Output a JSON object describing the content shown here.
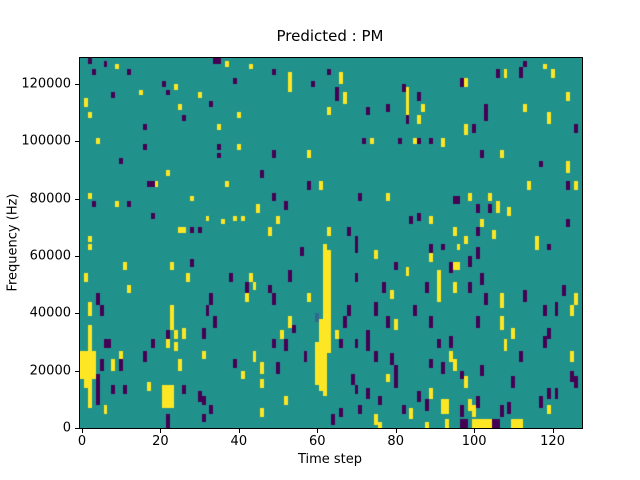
{
  "figure": {
    "title": "Predicted : PM",
    "background_color": "#ffffff"
  },
  "chart_data": {
    "type": "heatmap",
    "title": "Predicted : PM",
    "xlabel": "Time step",
    "ylabel": "Frequency (Hz)",
    "xlim": [
      -0.5,
      127.5
    ],
    "ylim": [
      0,
      129000
    ],
    "x_ticks": [
      0,
      20,
      40,
      60,
      80,
      100,
      120
    ],
    "y_ticks": [
      0,
      20000,
      40000,
      60000,
      80000,
      100000,
      120000
    ],
    "grid": {
      "cols": 128,
      "rows": 129,
      "row_unit_hz": 1000,
      "gridlines": false
    },
    "legend": null,
    "colors": {
      "background_value": "#21918c",
      "high_value": "#fde725",
      "low_value": "#440154",
      "mid_low_value": "#31688e",
      "axes_frame": "#000000"
    },
    "cell_format": "[time_step_col, freq_bottom_kHz, freq_top_kHz, optional_width_cols]",
    "high_cells": [
      [
        9,
        125,
        127
      ],
      [
        37,
        126,
        128
      ],
      [
        24,
        118,
        120
      ],
      [
        15,
        116,
        118
      ],
      [
        30,
        115,
        117
      ],
      [
        25,
        111,
        113
      ],
      [
        1,
        112,
        115
      ],
      [
        2,
        108,
        110
      ],
      [
        40,
        108,
        110
      ],
      [
        35,
        104,
        106
      ],
      [
        4,
        99,
        101
      ],
      [
        40,
        97,
        99
      ],
      [
        22,
        88,
        90
      ],
      [
        19,
        84,
        86
      ],
      [
        37,
        84,
        86
      ],
      [
        2,
        80,
        82
      ],
      [
        28,
        79,
        81
      ],
      [
        9,
        77,
        79
      ],
      [
        32,
        72,
        74
      ],
      [
        36,
        71,
        73
      ],
      [
        39,
        72,
        74
      ],
      [
        41,
        72,
        74
      ],
      [
        25,
        68,
        70,
        2
      ],
      [
        2,
        65,
        67
      ],
      [
        43,
        125,
        127
      ],
      [
        53,
        117,
        124
      ],
      [
        66,
        120,
        124
      ],
      [
        67,
        113,
        117
      ],
      [
        63,
        109,
        112
      ],
      [
        83,
        109,
        119
      ],
      [
        74,
        99,
        101
      ],
      [
        85,
        99,
        101
      ],
      [
        58,
        94,
        97
      ],
      [
        61,
        83,
        86
      ],
      [
        45,
        75,
        78
      ],
      [
        50,
        71,
        74
      ],
      [
        78,
        79,
        82
      ],
      [
        48,
        67,
        70
      ],
      [
        63,
        67,
        70
      ],
      [
        118,
        125,
        127
      ],
      [
        108,
        122,
        125
      ],
      [
        120,
        122,
        125
      ],
      [
        98,
        119,
        122
      ],
      [
        87,
        110,
        113
      ],
      [
        124,
        114,
        117
      ],
      [
        113,
        110,
        113
      ],
      [
        86,
        106,
        109
      ],
      [
        119,
        106,
        110
      ],
      [
        98,
        102,
        106
      ],
      [
        92,
        98,
        101
      ],
      [
        107,
        94,
        97
      ],
      [
        124,
        89,
        93
      ],
      [
        114,
        83,
        86
      ],
      [
        126,
        83,
        86
      ],
      [
        99,
        79,
        82
      ],
      [
        104,
        79,
        82
      ],
      [
        106,
        75,
        79
      ],
      [
        109,
        74,
        77
      ],
      [
        89,
        71,
        74
      ],
      [
        102,
        70,
        73
      ],
      [
        95,
        67,
        70
      ],
      [
        105,
        66,
        69
      ],
      [
        98,
        64,
        67
      ],
      [
        116,
        64,
        67
      ],
      [
        2,
        62,
        64
      ],
      [
        11,
        55,
        58
      ],
      [
        23,
        55,
        58
      ],
      [
        1,
        51,
        54
      ],
      [
        27,
        51,
        54
      ],
      [
        12,
        47,
        50
      ],
      [
        42,
        44,
        47
      ],
      [
        2,
        39,
        44
      ],
      [
        23,
        34,
        43
      ],
      [
        2,
        26,
        36
      ],
      [
        24,
        31,
        34
      ],
      [
        26,
        31,
        35
      ],
      [
        22,
        28,
        31
      ],
      [
        24,
        27,
        30
      ],
      [
        10,
        23,
        27
      ],
      [
        31,
        24,
        27
      ],
      [
        0,
        17,
        27,
        4
      ],
      [
        1,
        14,
        17,
        2
      ],
      [
        8,
        20,
        24
      ],
      [
        25,
        20,
        24
      ],
      [
        41,
        17,
        20
      ],
      [
        2,
        7,
        14
      ],
      [
        17,
        13,
        16
      ],
      [
        21,
        7,
        15,
        3
      ],
      [
        6,
        5,
        8
      ],
      [
        62,
        11,
        64
      ],
      [
        63,
        26,
        62
      ],
      [
        61,
        13,
        38
      ],
      [
        60,
        15,
        30
      ],
      [
        75,
        59,
        62
      ],
      [
        83,
        53,
        56
      ],
      [
        43,
        51,
        54
      ],
      [
        44,
        48,
        51
      ],
      [
        79,
        45,
        48
      ],
      [
        58,
        44,
        47
      ],
      [
        53,
        35,
        39
      ],
      [
        80,
        34,
        38
      ],
      [
        51,
        31,
        34
      ],
      [
        65,
        31,
        34
      ],
      [
        44,
        23,
        27
      ],
      [
        46,
        19,
        23
      ],
      [
        78,
        16,
        19
      ],
      [
        46,
        14,
        17
      ],
      [
        52,
        8,
        11
      ],
      [
        46,
        4,
        7
      ],
      [
        75,
        1,
        5
      ],
      [
        84,
        3,
        7
      ],
      [
        96,
        62,
        64
      ],
      [
        116,
        62,
        64
      ],
      [
        89,
        58,
        62
      ],
      [
        95,
        55,
        58,
        2
      ],
      [
        91,
        44,
        55
      ],
      [
        95,
        47,
        51
      ],
      [
        107,
        42,
        47
      ],
      [
        126,
        43,
        47
      ],
      [
        125,
        39,
        43
      ],
      [
        107,
        34,
        39
      ],
      [
        110,
        31,
        35
      ],
      [
        108,
        27,
        31
      ],
      [
        125,
        23,
        27
      ],
      [
        94,
        23,
        27
      ],
      [
        95,
        20,
        24
      ],
      [
        98,
        14,
        18
      ],
      [
        89,
        10,
        14
      ],
      [
        92,
        5,
        10,
        2
      ],
      [
        99,
        6,
        10
      ],
      [
        100,
        4,
        8
      ],
      [
        119,
        5,
        8
      ],
      [
        76,
        0,
        2
      ],
      [
        88,
        0,
        2
      ],
      [
        93,
        0,
        3
      ],
      [
        100,
        0,
        3,
        5
      ],
      [
        110,
        0,
        3,
        3
      ]
    ],
    "low_cells": [
      [
        2,
        127,
        129
      ],
      [
        6,
        126,
        128
      ],
      [
        3,
        123,
        125
      ],
      [
        12,
        123,
        125
      ],
      [
        34,
        127,
        129,
        2
      ],
      [
        39,
        120,
        122
      ],
      [
        21,
        119,
        121
      ],
      [
        8,
        115,
        117
      ],
      [
        22,
        116,
        118
      ],
      [
        33,
        112,
        114
      ],
      [
        26,
        107,
        109
      ],
      [
        16,
        104,
        106
      ],
      [
        16,
        97,
        99
      ],
      [
        35,
        97,
        99
      ],
      [
        35,
        94,
        96
      ],
      [
        10,
        92,
        94
      ],
      [
        17,
        84,
        86,
        2
      ],
      [
        3,
        77,
        79
      ],
      [
        12,
        77,
        79
      ],
      [
        18,
        73,
        75
      ],
      [
        28,
        68,
        70
      ],
      [
        30,
        68,
        70
      ],
      [
        49,
        123,
        125
      ],
      [
        59,
        119,
        121
      ],
      [
        63,
        123,
        125
      ],
      [
        65,
        114,
        119
      ],
      [
        73,
        109,
        112
      ],
      [
        78,
        110,
        113
      ],
      [
        82,
        117,
        120
      ],
      [
        83,
        106,
        109
      ],
      [
        72,
        99,
        101
      ],
      [
        81,
        99,
        101
      ],
      [
        49,
        94,
        97
      ],
      [
        46,
        87,
        90
      ],
      [
        58,
        83,
        86
      ],
      [
        49,
        79,
        82
      ],
      [
        52,
        76,
        79
      ],
      [
        71,
        79,
        82
      ],
      [
        84,
        71,
        74
      ],
      [
        68,
        67,
        70
      ],
      [
        70,
        64,
        67
      ],
      [
        113,
        126,
        128
      ],
      [
        106,
        122,
        125
      ],
      [
        112,
        122,
        126
      ],
      [
        97,
        119,
        122
      ],
      [
        86,
        114,
        117
      ],
      [
        103,
        110,
        113
      ],
      [
        103,
        107,
        110
      ],
      [
        100,
        103,
        106
      ],
      [
        126,
        103,
        106
      ],
      [
        86,
        99,
        101
      ],
      [
        89,
        99,
        101
      ],
      [
        102,
        94,
        97
      ],
      [
        117,
        91,
        93
      ],
      [
        124,
        83,
        86
      ],
      [
        95,
        78,
        81,
        2
      ],
      [
        101,
        75,
        78
      ],
      [
        104,
        75,
        78
      ],
      [
        86,
        72,
        75
      ],
      [
        124,
        70,
        73
      ],
      [
        101,
        67,
        70
      ],
      [
        28,
        56,
        59
      ],
      [
        38,
        51,
        54
      ],
      [
        42,
        47,
        51
      ],
      [
        4,
        43,
        47
      ],
      [
        33,
        43,
        47
      ],
      [
        32,
        39,
        43
      ],
      [
        5,
        39,
        43
      ],
      [
        34,
        35,
        39
      ],
      [
        31,
        31,
        35
      ],
      [
        22,
        31,
        34
      ],
      [
        6,
        28,
        31,
        2
      ],
      [
        16,
        23,
        27
      ],
      [
        18,
        28,
        31
      ],
      [
        5,
        20,
        24
      ],
      [
        10,
        20,
        24
      ],
      [
        39,
        21,
        24
      ],
      [
        4,
        8,
        19
      ],
      [
        8,
        12,
        15
      ],
      [
        11,
        12,
        15
      ],
      [
        26,
        12,
        15
      ],
      [
        30,
        9,
        13
      ],
      [
        31,
        8,
        11
      ],
      [
        33,
        5,
        8
      ],
      [
        22,
        0,
        5
      ],
      [
        31,
        2,
        5
      ],
      [
        56,
        60,
        63
      ],
      [
        70,
        61,
        64
      ],
      [
        80,
        55,
        58
      ],
      [
        53,
        51,
        55
      ],
      [
        70,
        51,
        54
      ],
      [
        48,
        47,
        50
      ],
      [
        77,
        47,
        51
      ],
      [
        49,
        43,
        47
      ],
      [
        68,
        39,
        43
      ],
      [
        67,
        35,
        39
      ],
      [
        75,
        39,
        44
      ],
      [
        85,
        39,
        43
      ],
      [
        54,
        33,
        36
      ],
      [
        78,
        35,
        39
      ],
      [
        73,
        31,
        34
      ],
      [
        49,
        28,
        31
      ],
      [
        52,
        27,
        31
      ],
      [
        66,
        28,
        31
      ],
      [
        70,
        28,
        31
      ],
      [
        73,
        27,
        31
      ],
      [
        50,
        19,
        23
      ],
      [
        57,
        23,
        27
      ],
      [
        75,
        23,
        27
      ],
      [
        79,
        22,
        26
      ],
      [
        80,
        14,
        22
      ],
      [
        69,
        15,
        19
      ],
      [
        70,
        12,
        15
      ],
      [
        73,
        10,
        14
      ],
      [
        76,
        8,
        11
      ],
      [
        66,
        4,
        7
      ],
      [
        71,
        5,
        8
      ],
      [
        82,
        5,
        8
      ],
      [
        64,
        1,
        5
      ],
      [
        89,
        61,
        64
      ],
      [
        92,
        62,
        64
      ],
      [
        101,
        59,
        63
      ],
      [
        119,
        62,
        64
      ],
      [
        94,
        54,
        58
      ],
      [
        99,
        56,
        60
      ],
      [
        102,
        50,
        54
      ],
      [
        88,
        47,
        51
      ],
      [
        99,
        47,
        51
      ],
      [
        103,
        43,
        47
      ],
      [
        113,
        44,
        48
      ],
      [
        123,
        46,
        50
      ],
      [
        118,
        39,
        43
      ],
      [
        121,
        39,
        44
      ],
      [
        89,
        35,
        39
      ],
      [
        101,
        35,
        39
      ],
      [
        119,
        31,
        35
      ],
      [
        91,
        28,
        31
      ],
      [
        94,
        28,
        32
      ],
      [
        118,
        28,
        32
      ],
      [
        112,
        23,
        27
      ],
      [
        89,
        21,
        24
      ],
      [
        92,
        19,
        23
      ],
      [
        97,
        17,
        20
      ],
      [
        102,
        18,
        22
      ],
      [
        110,
        14,
        18
      ],
      [
        125,
        16,
        20
      ],
      [
        126,
        14,
        18
      ],
      [
        86,
        9,
        13
      ],
      [
        88,
        6,
        10
      ],
      [
        101,
        7,
        11
      ],
      [
        109,
        5,
        9
      ],
      [
        117,
        7,
        11
      ],
      [
        119,
        10,
        14
      ],
      [
        121,
        10,
        14
      ],
      [
        97,
        4,
        8
      ],
      [
        107,
        4,
        8
      ],
      [
        97,
        0,
        3,
        2
      ],
      [
        105,
        0,
        3,
        2
      ]
    ],
    "mid_cells": [
      [
        60,
        37,
        40
      ]
    ]
  }
}
